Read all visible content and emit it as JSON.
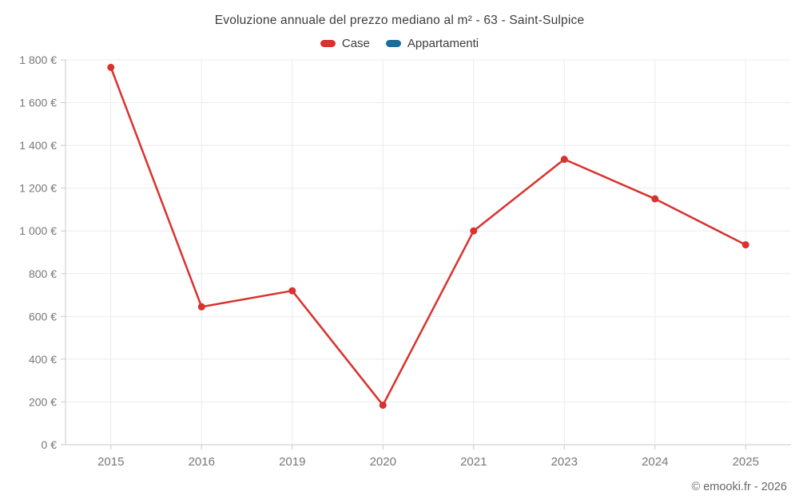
{
  "title": "Evoluzione annuale del prezzo mediano al m² - 63 - Saint-Sulpice",
  "legend": [
    {
      "label": "Case",
      "color": "#d8322e"
    },
    {
      "label": "Appartamenti",
      "color": "#1a6d9d"
    }
  ],
  "attribution": "© emooki.fr - 2026",
  "colors": {
    "grid": "#ebebeb",
    "axis": "#c9c9c9",
    "tick_text": "#787878",
    "title_text": "#3d3d3d"
  },
  "chart_data": {
    "type": "line",
    "title": "Evoluzione annuale del prezzo mediano al m² - 63 - Saint-Sulpice",
    "categories": [
      "2015",
      "2016",
      "2019",
      "2020",
      "2021",
      "2023",
      "2024",
      "2025"
    ],
    "series": [
      {
        "name": "Case",
        "color": "#d8322e",
        "values": [
          1765,
          645,
          720,
          185,
          1000,
          1335,
          1150,
          935
        ]
      },
      {
        "name": "Appartamenti",
        "color": "#1a6d9d",
        "values": []
      }
    ],
    "xlabel": "",
    "ylabel": "",
    "ylim": [
      0,
      1800
    ],
    "ytick_step": 200,
    "ytick_suffix": " €",
    "grid": true,
    "legend_position": "top"
  }
}
